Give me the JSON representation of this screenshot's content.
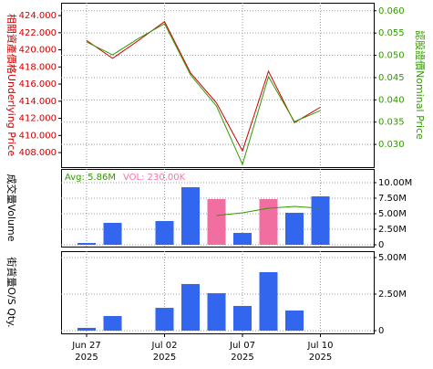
{
  "chart_data": [
    {
      "type": "line",
      "y_label": "相關資產價格Underlying Price",
      "y_label_color": "#cc0000",
      "y2_label": "認股證價Nominal Price",
      "y2_label_color": "#339900",
      "ylim": [
        406.3,
        425.5
      ],
      "yticks": [
        {
          "value": 408,
          "label": "408.000"
        },
        {
          "value": 410,
          "label": "410.000"
        },
        {
          "value": 412,
          "label": "412.000"
        },
        {
          "value": 414,
          "label": "414.000"
        },
        {
          "value": 416,
          "label": "416.000"
        },
        {
          "value": 418,
          "label": "418.000"
        },
        {
          "value": 420,
          "label": "420.000"
        },
        {
          "value": 422,
          "label": "422.000"
        },
        {
          "value": 424,
          "label": "424.000"
        }
      ],
      "y2lim": [
        0.0249,
        0.0618
      ],
      "y2ticks": [
        {
          "value": 0.03,
          "label": "0.030"
        },
        {
          "value": 0.035,
          "label": "0.035"
        },
        {
          "value": 0.04,
          "label": "0.040"
        },
        {
          "value": 0.045,
          "label": "0.045"
        },
        {
          "value": 0.05,
          "label": "0.050"
        },
        {
          "value": 0.055,
          "label": "0.055"
        },
        {
          "value": 0.06,
          "label": "0.060"
        }
      ],
      "grid": true,
      "series": [
        {
          "color": "#cc0000",
          "values": [
            421.1,
            419.0,
            421.1,
            423.3,
            417.3,
            413.8,
            408.2,
            417.5,
            411.5,
            413.3
          ]
        },
        {
          "color": "#339900",
          "axis": "y2",
          "values": [
            0.053,
            0.0501,
            0.0538,
            0.0571,
            0.0456,
            0.0386,
            0.0255,
            0.0452,
            0.0351,
            0.0376
          ]
        }
      ]
    },
    {
      "type": "bar",
      "y_label": "成交量Volume",
      "ylim": [
        -294000,
        12200000
      ],
      "yticks": [
        {
          "value": 0,
          "label": "0"
        },
        {
          "value": 2500000,
          "label": "2.50M"
        },
        {
          "value": 5000000,
          "label": "5.00M"
        },
        {
          "value": 7500000,
          "label": "7.50M"
        },
        {
          "value": 10000000,
          "label": "10.00M"
        }
      ],
      "grid": true,
      "annotations": [
        {
          "text": "Avg: 5.86M",
          "color": "#339900"
        },
        {
          "text": "VOL: 230.00K",
          "color": "#ee77aa"
        }
      ],
      "series": [
        {
          "kind": "bar",
          "colors": [
            "#3366ee",
            "#3366ee",
            "#3366ee",
            "#3366ee",
            "#3366ee",
            "#f06ea0",
            "#3366ee",
            "#f06ea0",
            "#3366ee",
            "#3366ee"
          ],
          "values": [
            290000,
            3530000,
            null,
            3820000,
            9260000,
            7350000,
            1910000,
            7350000,
            5150000,
            7790000
          ]
        },
        {
          "kind": "line",
          "color": "#339900",
          "values": [
            null,
            null,
            null,
            null,
            null,
            4710000,
            5150000,
            5880000,
            6180000,
            5880000
          ]
        }
      ]
    },
    {
      "type": "bar",
      "y_label": "街貨量O/S Qty.",
      "ylim": [
        -187500,
        5437500
      ],
      "yticks": [
        {
          "value": 0,
          "label": "0"
        },
        {
          "value": 2500000,
          "label": "2.50M"
        },
        {
          "value": 5000000,
          "label": "5.00M"
        }
      ],
      "grid": true,
      "categories": [
        "Jun 27",
        null,
        null,
        "Jul 02",
        null,
        null,
        "Jul 07",
        null,
        null,
        "Jul 10"
      ],
      "category_years": [
        "2025",
        null,
        null,
        "2025",
        null,
        null,
        "2025",
        null,
        null,
        "2025"
      ],
      "series": [
        {
          "kind": "bar",
          "color": "#3366ee",
          "values": [
            190000,
            1000000,
            null,
            1560000,
            3190000,
            2560000,
            1690000,
            4000000,
            1380000,
            null
          ]
        }
      ]
    }
  ]
}
